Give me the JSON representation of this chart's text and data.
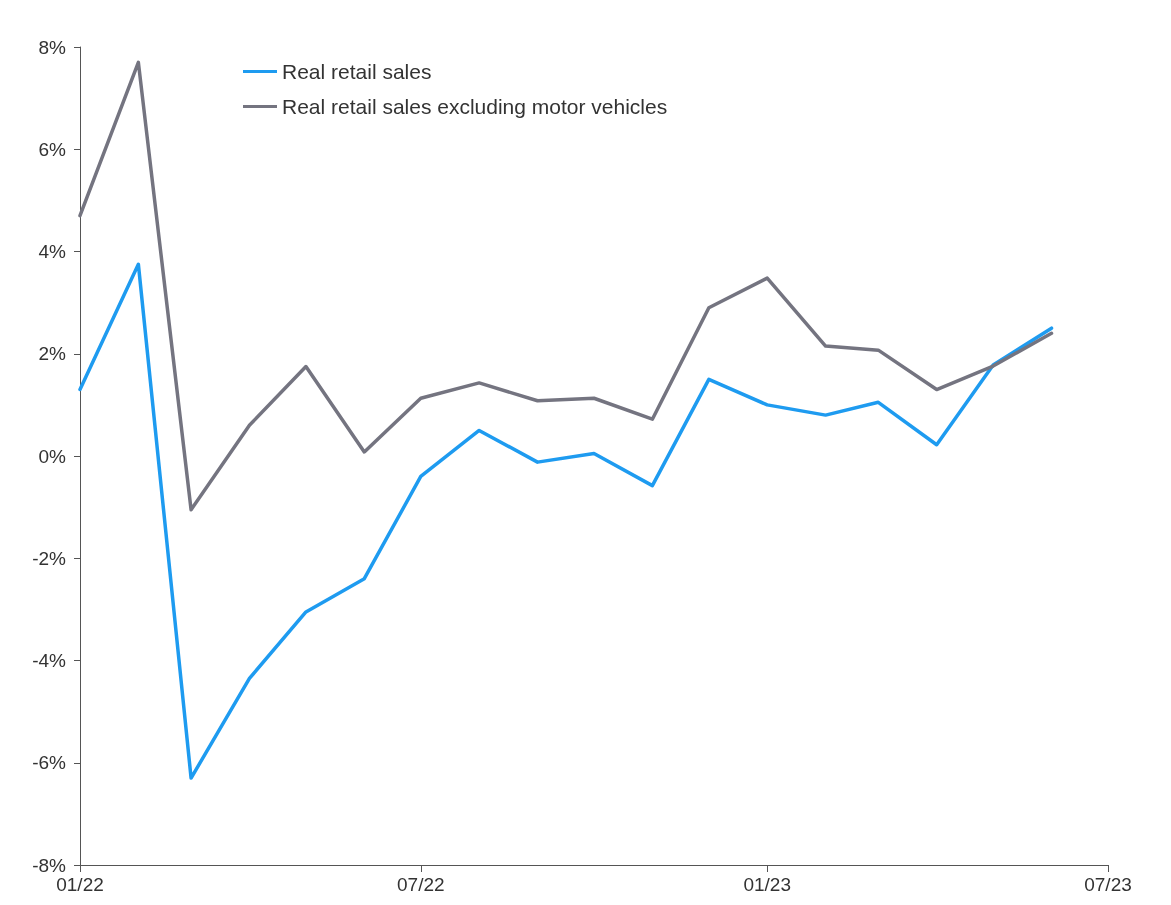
{
  "chart_data": {
    "type": "line",
    "x": [
      "2022-01",
      "2022-02",
      "2022-03",
      "2022-04",
      "2022-05",
      "2022-06",
      "2022-07",
      "2022-08",
      "2022-09",
      "2022-10",
      "2022-11",
      "2022-12",
      "2023-01",
      "2023-02",
      "2023-03",
      "2023-04",
      "2023-05",
      "2023-06"
    ],
    "series": [
      {
        "name": "Real retail sales",
        "color": "#1e9bf0",
        "values": [
          1.3,
          3.75,
          -6.3,
          -4.35,
          -3.05,
          -2.4,
          -0.4,
          0.5,
          -0.12,
          0.05,
          -0.58,
          1.5,
          1.0,
          0.8,
          1.05,
          0.22,
          1.78,
          2.5
        ]
      },
      {
        "name": "Real retail sales excluding motor vehicles",
        "color": "#747480",
        "values": [
          4.7,
          7.7,
          -1.05,
          0.6,
          1.75,
          0.08,
          1.13,
          1.43,
          1.08,
          1.13,
          0.72,
          2.9,
          3.48,
          2.15,
          2.07,
          1.3,
          1.76,
          2.4
        ]
      }
    ],
    "xlim": [
      "2022-01",
      "2023-07"
    ],
    "xticks": [
      {
        "value": "2022-01",
        "label": "01/22"
      },
      {
        "value": "2022-07",
        "label": "07/22"
      },
      {
        "value": "2023-01",
        "label": "01/23"
      },
      {
        "value": "2023-07",
        "label": "07/23"
      }
    ],
    "ylim": [
      -8,
      8
    ],
    "yticks": [
      {
        "value": -8,
        "label": "-8%"
      },
      {
        "value": -6,
        "label": "-6%"
      },
      {
        "value": -4,
        "label": "-4%"
      },
      {
        "value": -2,
        "label": "-2%"
      },
      {
        "value": 0,
        "label": "0%"
      },
      {
        "value": 2,
        "label": "2%"
      },
      {
        "value": 4,
        "label": "4%"
      },
      {
        "value": 6,
        "label": "6%"
      },
      {
        "value": 8,
        "label": "8%"
      }
    ],
    "grid": false,
    "legend": "top left",
    "marker": "none",
    "line_style": "solid"
  }
}
